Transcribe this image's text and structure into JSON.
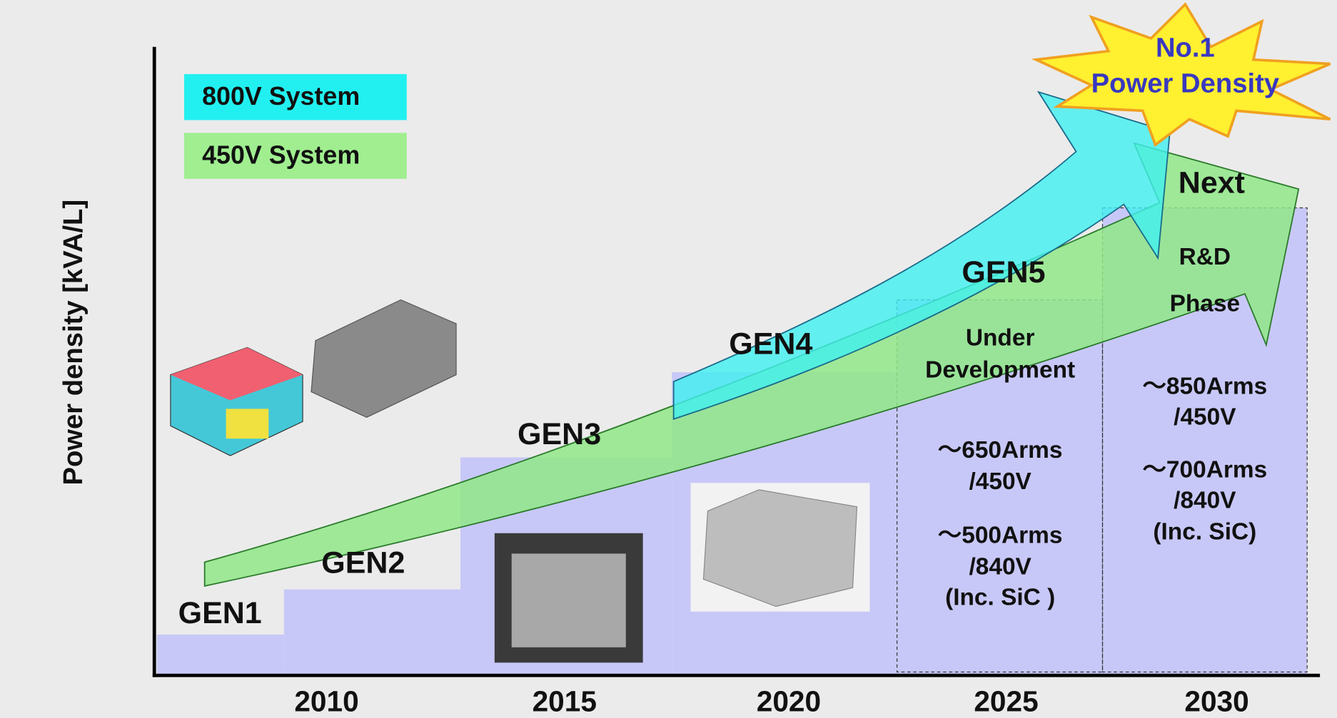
{
  "legend": [
    "800V System",
    "450V System"
  ],
  "y_axis_label": "Power density [kVA/L]",
  "x_labels": [
    "2010",
    "2015",
    "2020",
    "2025",
    "2030"
  ],
  "generations": [
    "GEN1",
    "GEN2",
    "GEN3",
    "GEN4",
    "GEN5",
    "Next"
  ],
  "gen5": {
    "status": [
      "Under",
      "Development"
    ],
    "specs": [
      "〜650Arms",
      "/450V",
      "〜500Arms",
      "/840V",
      "(Inc. SiC )"
    ]
  },
  "next": {
    "status": [
      "R&D",
      "Phase"
    ],
    "specs": [
      "〜850Arms",
      "/450V",
      "〜700Arms",
      "/840V",
      "(Inc. SiC)"
    ]
  },
  "badge": [
    "No.1",
    "Power Density"
  ]
}
